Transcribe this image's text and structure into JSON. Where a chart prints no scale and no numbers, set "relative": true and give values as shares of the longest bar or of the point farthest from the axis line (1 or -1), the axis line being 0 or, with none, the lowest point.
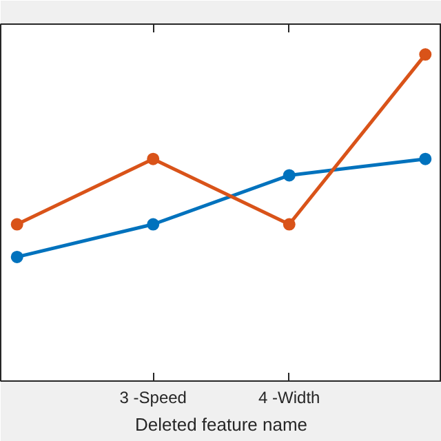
{
  "chart_data": {
    "type": "line",
    "xlabel": "Deleted feature name",
    "relative": true,
    "marker": "circle",
    "line_style": "solid",
    "grid": false,
    "categories": [
      null,
      "3 -Speed",
      "4 -Width",
      null
    ],
    "series": [
      {
        "color": "#0072bd",
        "values": [
          0.38,
          0.48,
          0.63,
          0.68
        ]
      },
      {
        "color": "#d95319",
        "values": [
          0.48,
          0.68,
          0.48,
          1.0
        ]
      }
    ]
  }
}
